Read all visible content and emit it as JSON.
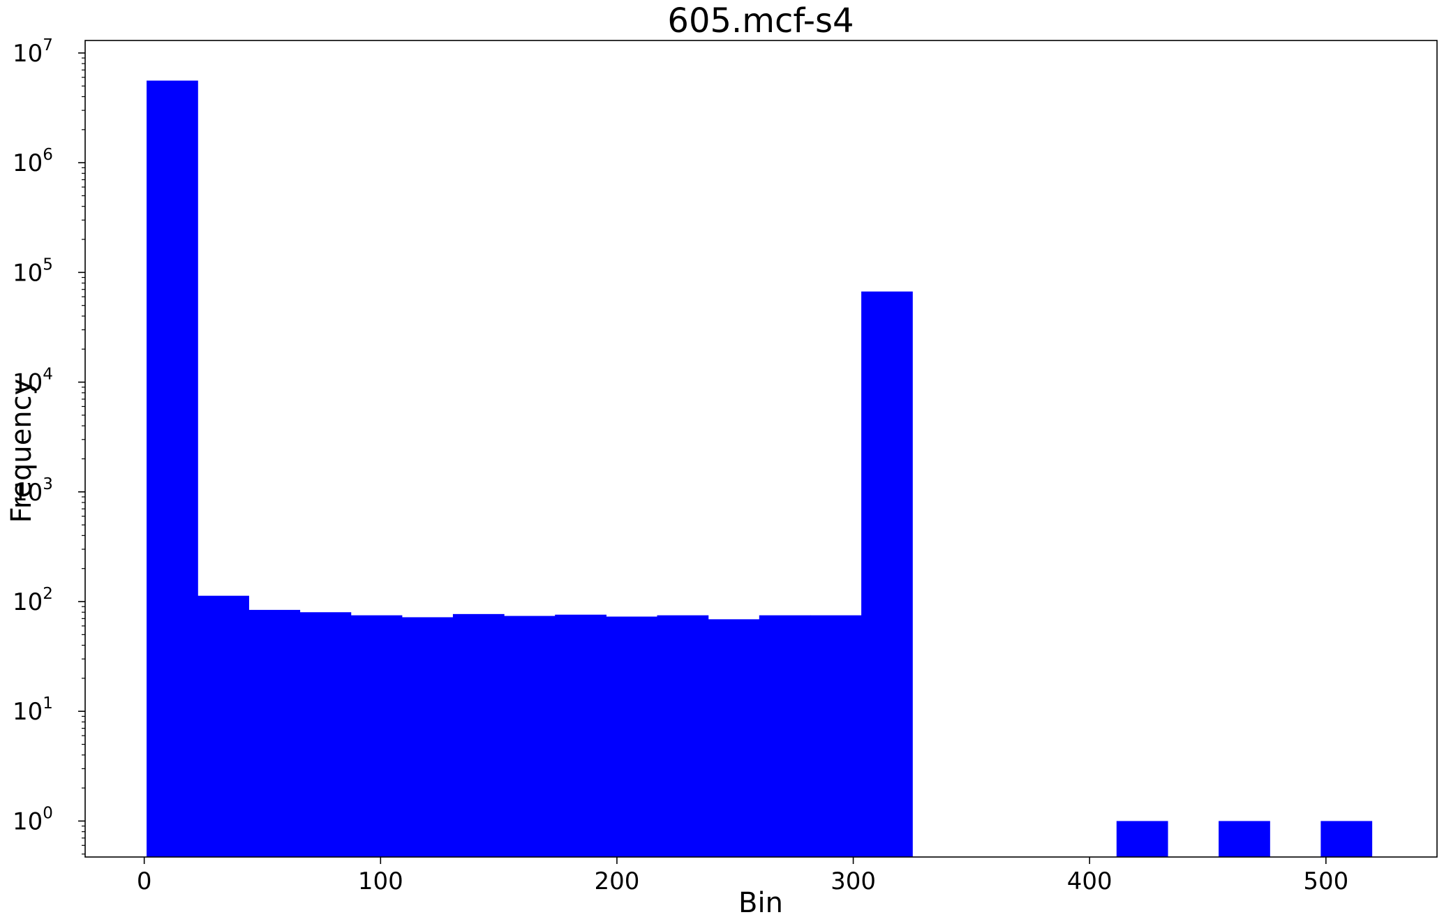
{
  "chart_data": {
    "type": "bar",
    "title": "605.mcf-s4",
    "xlabel": "Bin",
    "ylabel": "Frequency",
    "yscale": "log",
    "xlim": [
      -25,
      547
    ],
    "ylim": [
      0.47,
      13000000
    ],
    "bar_color": "#0000ff",
    "bin_width": 21.6,
    "bins": [
      {
        "left": 1,
        "value": 5600000
      },
      {
        "left": 22.6,
        "value": 113
      },
      {
        "left": 44.2,
        "value": 84
      },
      {
        "left": 65.8,
        "value": 80
      },
      {
        "left": 87.4,
        "value": 75
      },
      {
        "left": 109,
        "value": 72
      },
      {
        "left": 130.6,
        "value": 77
      },
      {
        "left": 152.2,
        "value": 74
      },
      {
        "left": 173.8,
        "value": 76
      },
      {
        "left": 195.4,
        "value": 73
      },
      {
        "left": 217,
        "value": 75
      },
      {
        "left": 238.6,
        "value": 69
      },
      {
        "left": 260.2,
        "value": 75
      },
      {
        "left": 281.8,
        "value": 75
      },
      {
        "left": 303.4,
        "value": 67000
      },
      {
        "left": 411.4,
        "value": 1
      },
      {
        "left": 454.6,
        "value": 1
      },
      {
        "left": 497.8,
        "value": 1
      }
    ],
    "x_ticks": [
      {
        "value": 0,
        "label": "0"
      },
      {
        "value": 100,
        "label": "100"
      },
      {
        "value": 200,
        "label": "200"
      },
      {
        "value": 300,
        "label": "300"
      },
      {
        "value": 400,
        "label": "400"
      },
      {
        "value": 500,
        "label": "500"
      }
    ],
    "y_ticks": [
      {
        "value": 1,
        "base": "10",
        "exp": "0"
      },
      {
        "value": 10,
        "base": "10",
        "exp": "1"
      },
      {
        "value": 100,
        "base": "10",
        "exp": "2"
      },
      {
        "value": 1000,
        "base": "10",
        "exp": "3"
      },
      {
        "value": 10000,
        "base": "10",
        "exp": "4"
      },
      {
        "value": 100000,
        "base": "10",
        "exp": "5"
      },
      {
        "value": 1000000,
        "base": "10",
        "exp": "6"
      },
      {
        "value": 10000000,
        "base": "10",
        "exp": "7"
      }
    ],
    "grid": false,
    "legend": "none"
  }
}
